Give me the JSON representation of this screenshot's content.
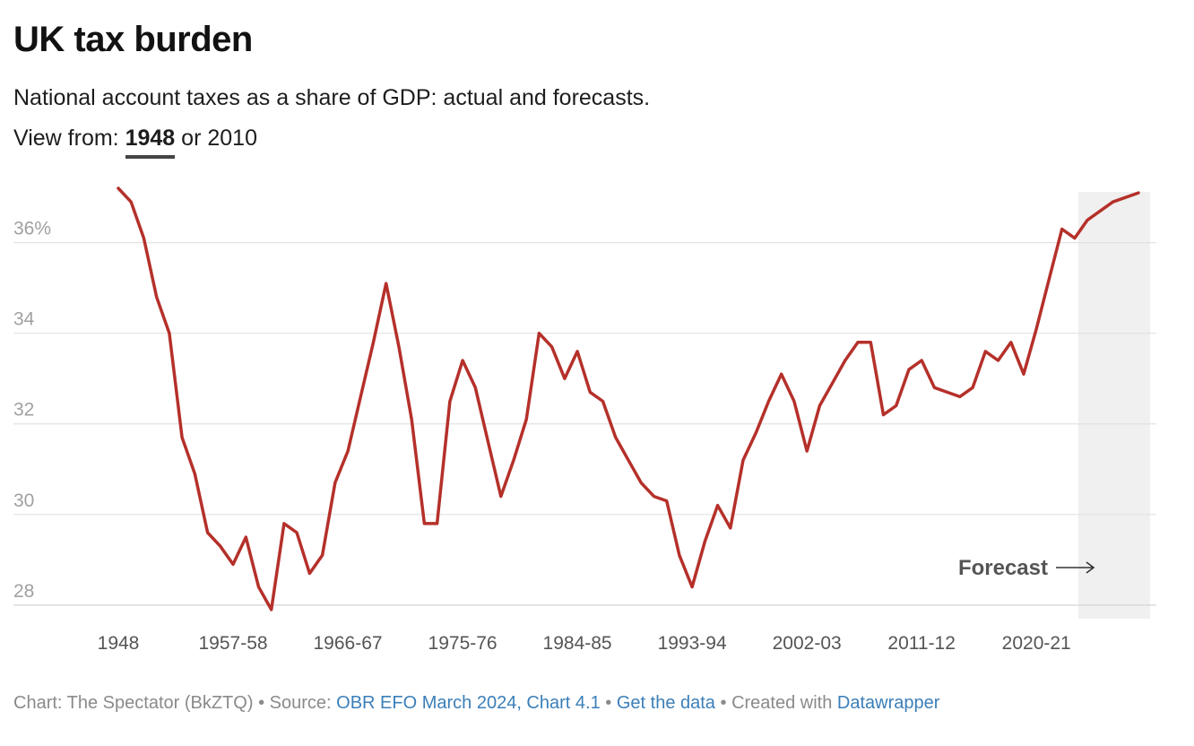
{
  "title": "UK tax burden",
  "subtitle": "National account taxes as a share of GDP: actual and forecasts.",
  "view_from": {
    "label": "View from:",
    "options": [
      "1948",
      "2010"
    ],
    "active": "1948",
    "separator": "or"
  },
  "footer": {
    "chart_label": "Chart: The Spectator (BkZTQ)",
    "sep1": "•",
    "source_label": "Source:",
    "source_link": "OBR EFO March 2024, Chart 4.1",
    "sep2": "•",
    "get_data": "Get the data",
    "sep3": "•",
    "created_with": "Created with",
    "datawrapper": "Datawrapper"
  },
  "colors": {
    "line": "#b5302a",
    "grid": "#e2e2e2",
    "forecast_band": "#f0f0f0",
    "link": "#3b7fb9"
  },
  "chart_data": {
    "type": "line",
    "title": "UK tax burden",
    "subtitle": "National account taxes as a share of GDP: actual and forecasts.",
    "xlabel": "",
    "ylabel": "",
    "y_ticks": [
      {
        "value": 28,
        "label": "28"
      },
      {
        "value": 30,
        "label": "30"
      },
      {
        "value": 32,
        "label": "32"
      },
      {
        "value": 34,
        "label": "34"
      },
      {
        "value": 36,
        "label": "36%"
      }
    ],
    "x_ticks": [
      "1948",
      "1957-58",
      "1966-67",
      "1975-76",
      "1984-85",
      "1993-94",
      "2002-03",
      "2011-12",
      "2020-21"
    ],
    "x_tick_years": [
      1948,
      1957,
      1966,
      1975,
      1984,
      1993,
      2002,
      2011,
      2020
    ],
    "ylim": [
      27.7,
      37.2
    ],
    "xlim": [
      1948,
      2028
    ],
    "grid": true,
    "forecast": {
      "label": "Forecast",
      "start_year": 2023
    },
    "series": [
      {
        "x": [
          1948,
          1949,
          1950,
          1951,
          1952,
          1953,
          1954,
          1955,
          1956,
          1957,
          1958,
          1959,
          1960,
          1961,
          1962,
          1963,
          1964,
          1965,
          1966,
          1967,
          1968,
          1969,
          1970,
          1971,
          1972,
          1973,
          1974,
          1975,
          1976,
          1977,
          1978,
          1979,
          1980,
          1981,
          1982,
          1983,
          1984,
          1985,
          1986,
          1987,
          1988,
          1989,
          1990,
          1991,
          1992,
          1993,
          1994,
          1995,
          1996,
          1997,
          1998,
          1999,
          2000,
          2001,
          2002,
          2003,
          2004,
          2005,
          2006,
          2007,
          2008,
          2009,
          2010,
          2011,
          2012,
          2013,
          2014,
          2015,
          2016,
          2017,
          2018,
          2019,
          2020,
          2021,
          2022,
          2023,
          2024,
          2025,
          2026,
          2027,
          2028
        ],
        "values": [
          37.2,
          36.9,
          36.1,
          34.8,
          34.0,
          31.7,
          30.9,
          29.6,
          29.3,
          28.9,
          29.5,
          28.4,
          27.9,
          29.8,
          29.6,
          28.7,
          29.1,
          30.7,
          31.4,
          32.6,
          33.8,
          35.1,
          33.7,
          32.1,
          29.8,
          29.8,
          32.5,
          33.4,
          32.8,
          31.6,
          30.4,
          31.2,
          32.1,
          34.0,
          33.7,
          33.0,
          33.6,
          32.7,
          32.5,
          31.7,
          31.2,
          30.7,
          30.4,
          30.3,
          29.1,
          28.4,
          29.4,
          30.2,
          29.7,
          31.2,
          31.8,
          32.5,
          33.1,
          32.5,
          31.4,
          32.4,
          32.9,
          33.4,
          33.8,
          33.8,
          32.2,
          32.4,
          33.2,
          33.4,
          32.8,
          32.7,
          32.6,
          32.8,
          33.6,
          33.4,
          33.8,
          33.1,
          34.1,
          35.2,
          36.3,
          36.1,
          36.5,
          36.7,
          36.9,
          37.0,
          37.1
        ]
      }
    ]
  }
}
